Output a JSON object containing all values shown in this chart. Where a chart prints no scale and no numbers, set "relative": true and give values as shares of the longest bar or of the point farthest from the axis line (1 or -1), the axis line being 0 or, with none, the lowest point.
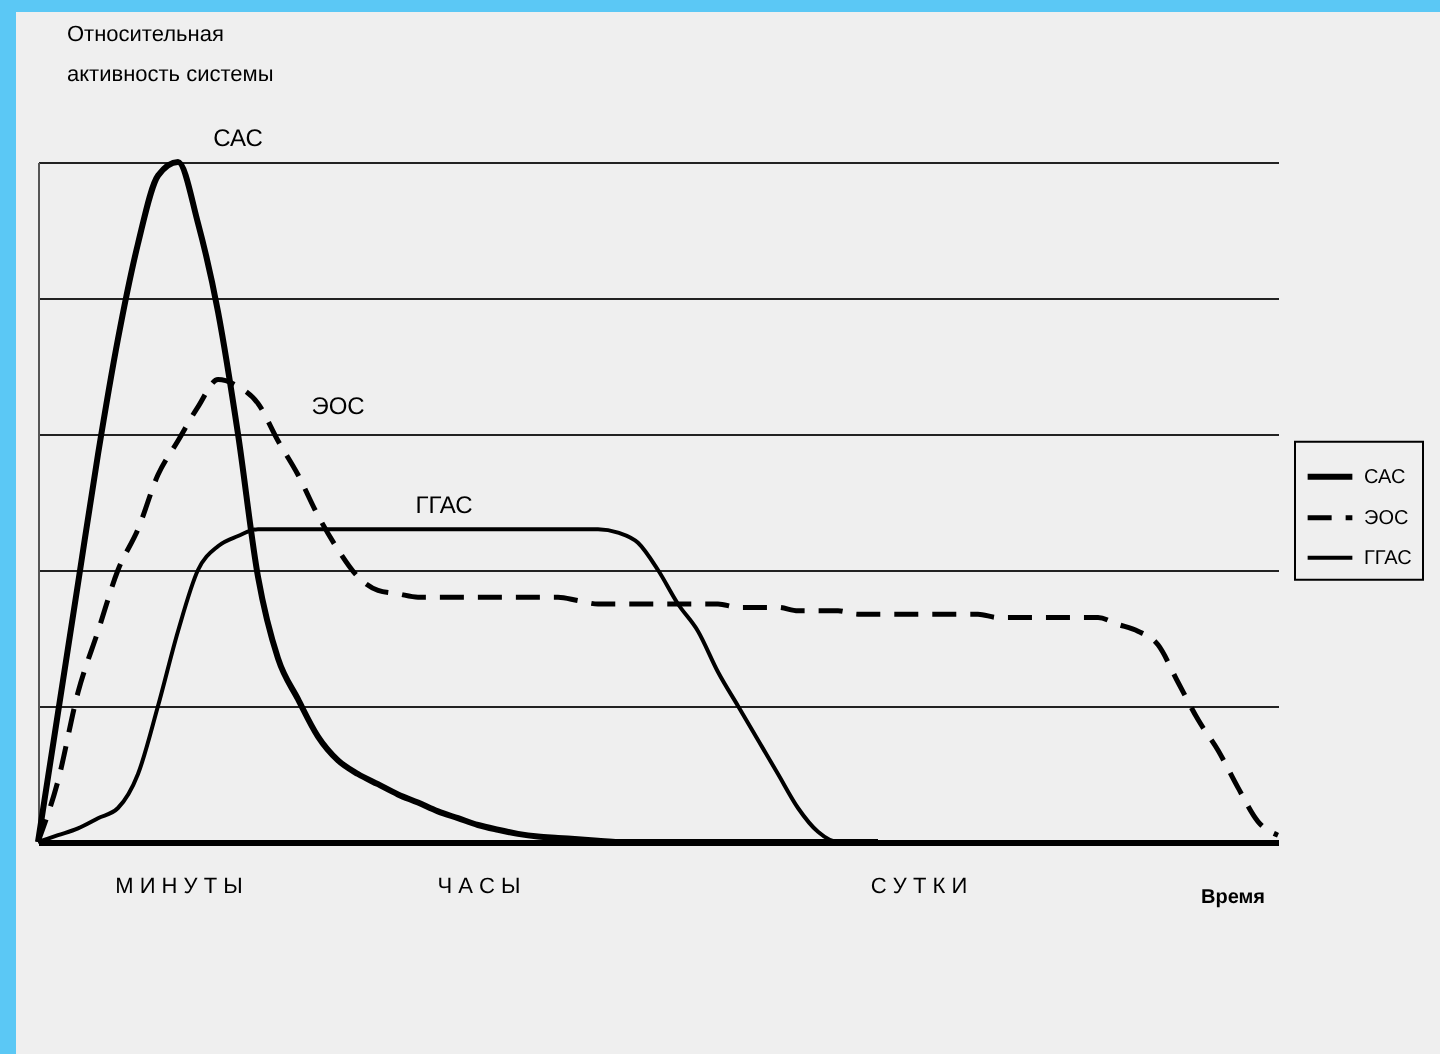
{
  "chart_data": {
    "type": "line",
    "relative": true,
    "ylabel": "Относительная\nактивность системы",
    "xlabel": "Время",
    "grid": "y",
    "legend": "right",
    "marker": "none",
    "categories": [
      null,
      null,
      null,
      null,
      null,
      null,
      null,
      "М И Н У Т Ы",
      null,
      null,
      null,
      null,
      null,
      null,
      null,
      null,
      null,
      null,
      null,
      null,
      null,
      null,
      "Ч А С Ы",
      null,
      null,
      null,
      null,
      null,
      null,
      null,
      null,
      null,
      null,
      null,
      null,
      null,
      null,
      null,
      null,
      null,
      null,
      null,
      null,
      null,
      "С У Т К И",
      null,
      null,
      null,
      null,
      null,
      null,
      null,
      null,
      null,
      null,
      null,
      null,
      null,
      null,
      null,
      null,
      null,
      null
    ],
    "series": [
      {
        "name": "САС",
        "color": "#000000",
        "line_style": "solid",
        "values": [
          0,
          0.19,
          0.38,
          0.57,
          0.74,
          0.88,
          0.98,
          1,
          0.91,
          0.78,
          0.6,
          0.39,
          0.27,
          0.21,
          0.155,
          0.12,
          0.1,
          0.085,
          0.07,
          0.058,
          0.045,
          0.035,
          0.025,
          0.018,
          0.012,
          0.008,
          0.006,
          0.004,
          0.002,
          0,
          0,
          0,
          0,
          0,
          0,
          0,
          0,
          0,
          0,
          0,
          0,
          0,
          0,
          null,
          null,
          null,
          null,
          null,
          null,
          null,
          null,
          null,
          null,
          null,
          null,
          null,
          null,
          null,
          null,
          null,
          null,
          null,
          null
        ]
      },
      {
        "name": "ЭОС",
        "color": "#000000",
        "line_style": "dashed",
        "values": [
          0,
          0.09,
          0.22,
          0.31,
          0.4,
          0.46,
          0.54,
          0.59,
          0.64,
          0.68,
          0.67,
          0.645,
          0.59,
          0.54,
          0.48,
          0.43,
          0.39,
          0.37,
          0.365,
          0.36,
          0.36,
          0.36,
          0.36,
          0.36,
          0.36,
          0.36,
          0.36,
          0.355,
          0.35,
          0.35,
          0.35,
          0.35,
          0.35,
          0.35,
          0.35,
          0.345,
          0.345,
          0.345,
          0.34,
          0.34,
          0.34,
          0.335,
          0.335,
          0.335,
          0.335,
          0.335,
          0.335,
          0.335,
          0.33,
          0.33,
          0.33,
          0.33,
          0.33,
          0.33,
          0.32,
          0.31,
          0.29,
          0.235,
          0.18,
          0.135,
          0.08,
          0.03,
          0.01
        ]
      },
      {
        "name": "ГГАС",
        "color": "#000000",
        "line_style": "solid",
        "values": [
          0,
          0.01,
          0.02,
          0.035,
          0.05,
          0.1,
          0.2,
          0.31,
          0.4,
          0.435,
          0.45,
          0.46,
          0.46,
          0.46,
          0.46,
          0.46,
          0.46,
          0.46,
          0.46,
          0.46,
          0.46,
          0.46,
          0.46,
          0.46,
          0.46,
          0.46,
          0.46,
          0.46,
          0.46,
          0.455,
          0.44,
          0.4,
          0.35,
          0.31,
          0.25,
          0.2,
          0.15,
          0.1,
          0.05,
          0.015,
          0,
          0,
          0,
          null,
          null,
          null,
          null,
          null,
          null,
          null,
          null,
          null,
          null,
          null,
          null,
          null,
          null,
          null,
          null,
          null,
          null,
          null,
          null
        ]
      }
    ]
  }
}
